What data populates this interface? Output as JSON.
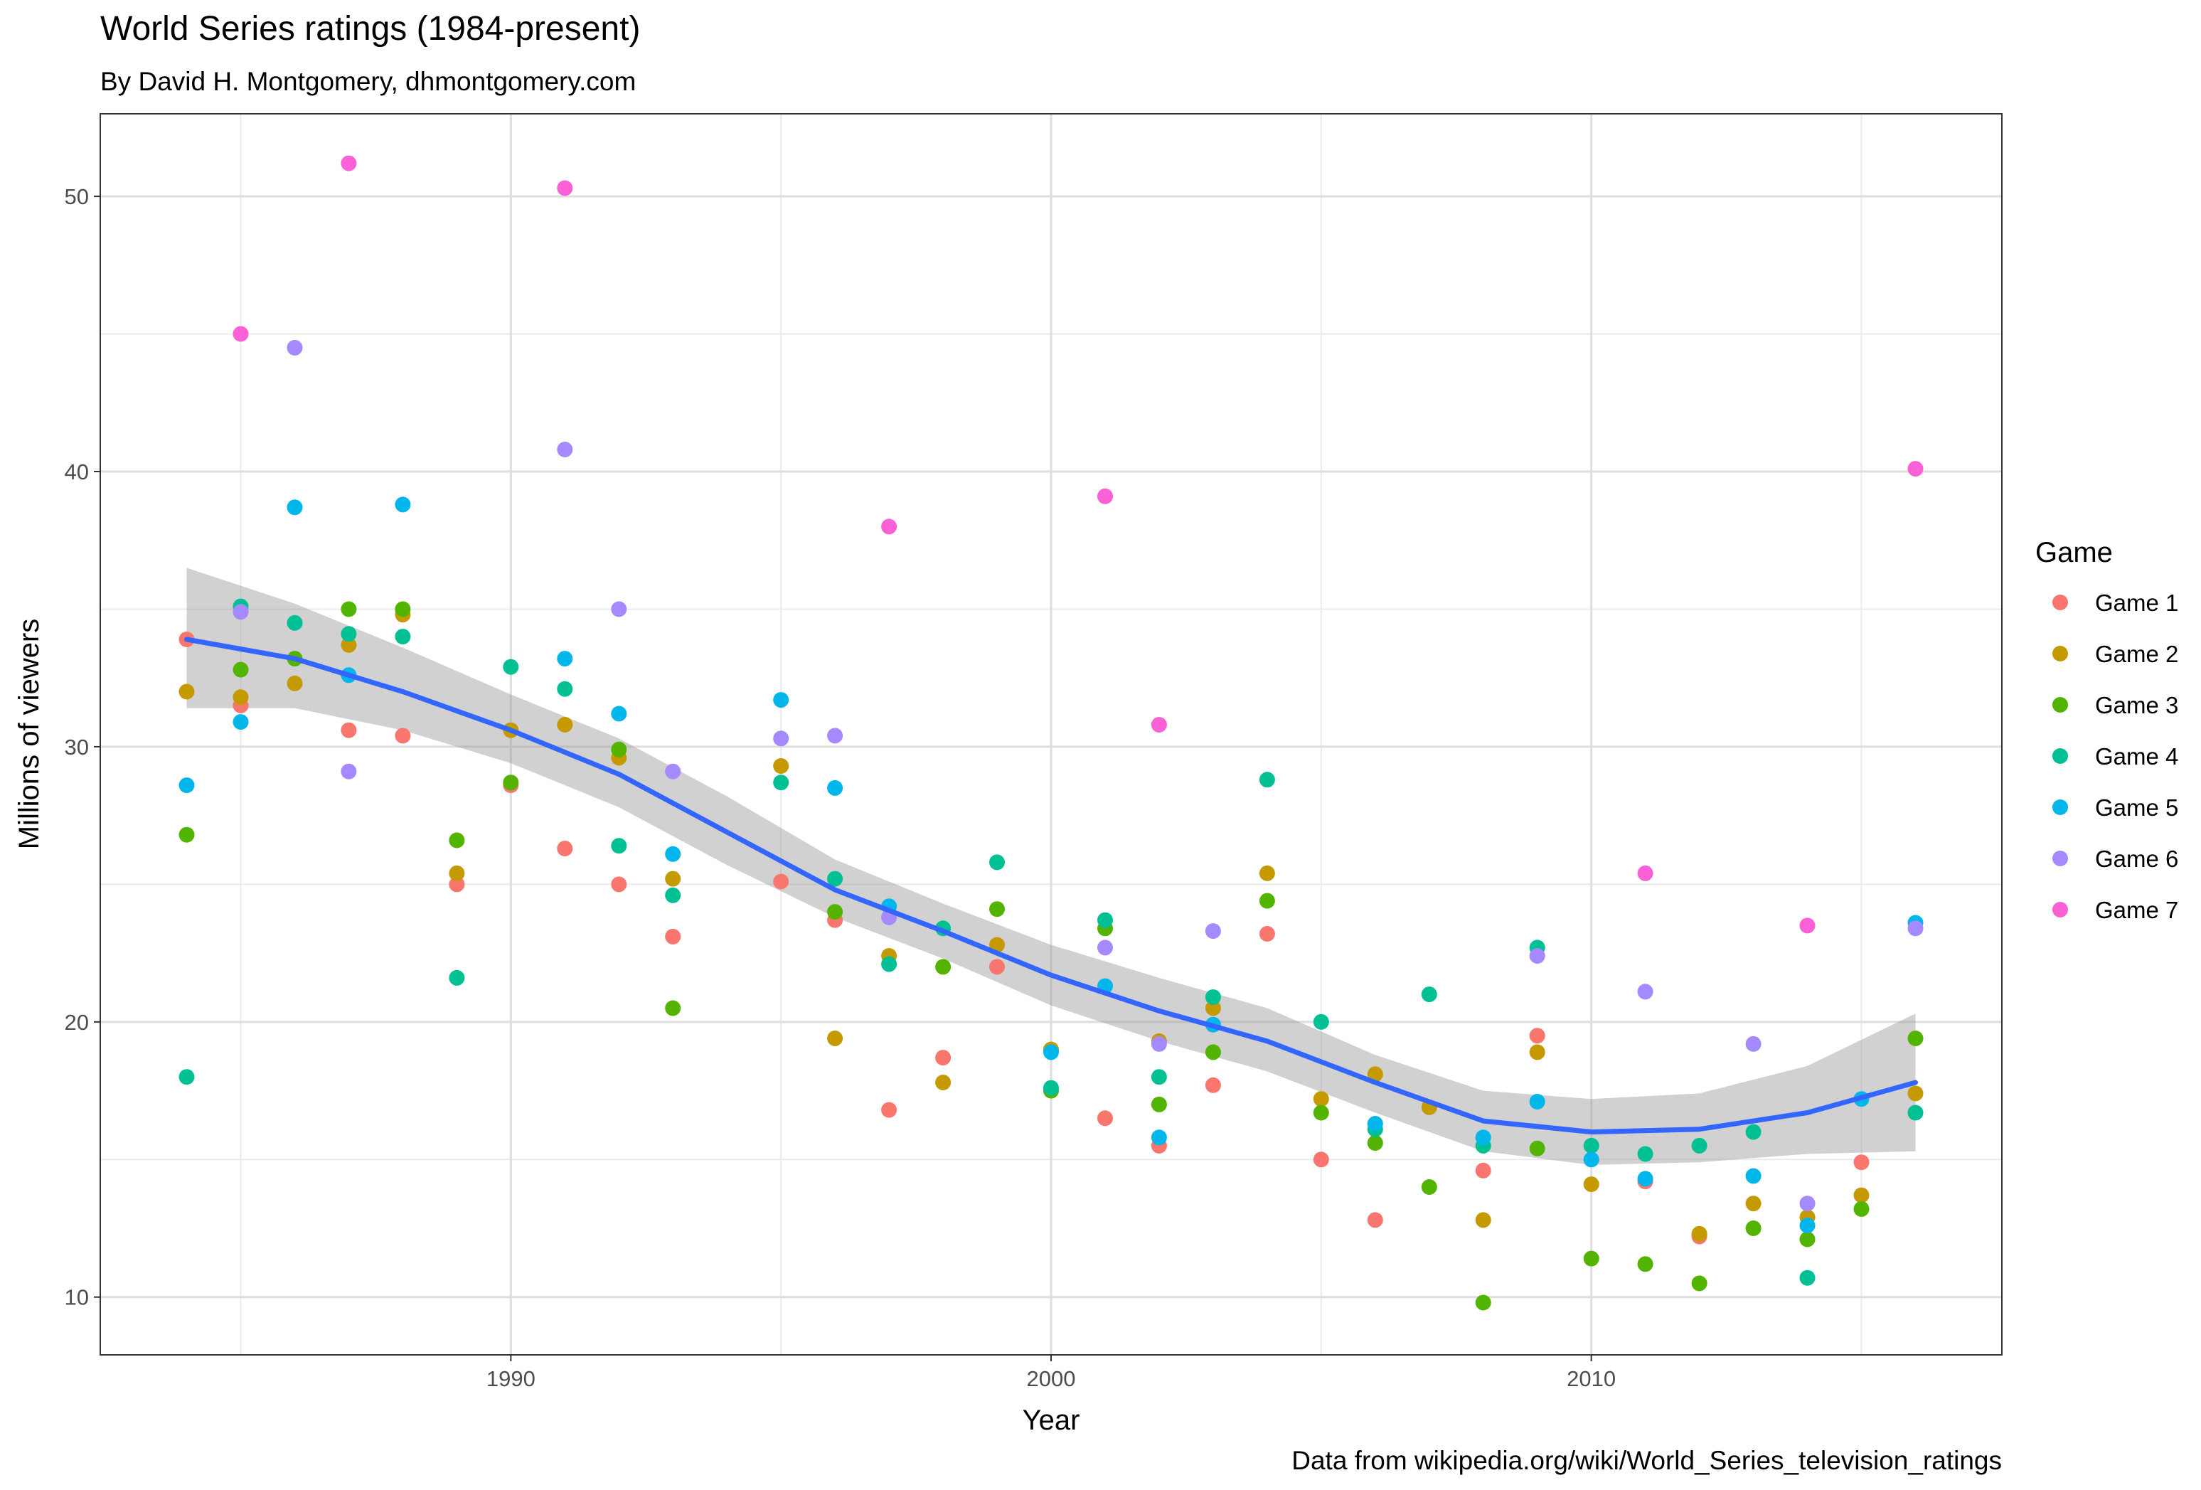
{
  "chart_data": {
    "type": "scatter",
    "title": "World Series ratings (1984-present)",
    "subtitle": "By David H. Montgomery, dhmontgomery.com",
    "xlabel": "Year",
    "ylabel": "Millions of viewers",
    "caption": "Data from wikipedia.org/wiki/World_Series_television_ratings",
    "xlim": [
      1982.4,
      2017.6
    ],
    "ylim": [
      7.9,
      53.0
    ],
    "xticks": [
      1990,
      2000,
      2010
    ],
    "yticks": [
      10,
      20,
      30,
      40,
      50
    ],
    "grid": true,
    "legend": {
      "title": "Game",
      "position": "right"
    },
    "series": [
      {
        "name": "Game 1",
        "color": "#F8766D",
        "points": [
          [
            1984,
            33.9
          ],
          [
            1985,
            31.5
          ],
          [
            1987,
            30.6
          ],
          [
            1988,
            30.4
          ],
          [
            1989,
            25.0
          ],
          [
            1990,
            28.6
          ],
          [
            1991,
            26.3
          ],
          [
            1992,
            25.0
          ],
          [
            1993,
            23.1
          ],
          [
            1995,
            25.1
          ],
          [
            1996,
            23.7
          ],
          [
            1997,
            16.8
          ],
          [
            1998,
            18.7
          ],
          [
            1999,
            22.0
          ],
          [
            2001,
            16.5
          ],
          [
            2002,
            15.5
          ],
          [
            2003,
            17.7
          ],
          [
            2004,
            23.2
          ],
          [
            2005,
            15.0
          ],
          [
            2006,
            12.8
          ],
          [
            2008,
            14.6
          ],
          [
            2009,
            19.5
          ],
          [
            2011,
            14.2
          ],
          [
            2012,
            12.2
          ],
          [
            2015,
            14.9
          ]
        ]
      },
      {
        "name": "Game 2",
        "color": "#C49A00",
        "points": [
          [
            1984,
            32.0
          ],
          [
            1985,
            31.8
          ],
          [
            1986,
            32.3
          ],
          [
            1987,
            33.7
          ],
          [
            1988,
            34.8
          ],
          [
            1989,
            25.4
          ],
          [
            1990,
            30.6
          ],
          [
            1991,
            30.8
          ],
          [
            1992,
            29.6
          ],
          [
            1993,
            25.2
          ],
          [
            1995,
            29.3
          ],
          [
            1996,
            19.4
          ],
          [
            1997,
            22.4
          ],
          [
            1998,
            17.8
          ],
          [
            1999,
            22.8
          ],
          [
            2000,
            19.0
          ],
          [
            2002,
            19.3
          ],
          [
            2003,
            20.5
          ],
          [
            2004,
            25.4
          ],
          [
            2005,
            17.2
          ],
          [
            2006,
            18.1
          ],
          [
            2007,
            16.9
          ],
          [
            2008,
            12.8
          ],
          [
            2009,
            18.9
          ],
          [
            2010,
            14.1
          ],
          [
            2012,
            12.3
          ],
          [
            2013,
            13.4
          ],
          [
            2014,
            12.9
          ],
          [
            2015,
            13.7
          ],
          [
            2016,
            17.4
          ]
        ]
      },
      {
        "name": "Game 3",
        "color": "#53B400",
        "points": [
          [
            1984,
            26.8
          ],
          [
            1985,
            32.8
          ],
          [
            1986,
            33.2
          ],
          [
            1987,
            35.0
          ],
          [
            1988,
            35.0
          ],
          [
            1989,
            26.6
          ],
          [
            1990,
            28.7
          ],
          [
            1992,
            29.9
          ],
          [
            1993,
            20.5
          ],
          [
            1996,
            24.0
          ],
          [
            1998,
            22.0
          ],
          [
            1999,
            24.1
          ],
          [
            2000,
            17.5
          ],
          [
            2001,
            23.4
          ],
          [
            2002,
            17.0
          ],
          [
            2003,
            18.9
          ],
          [
            2004,
            24.4
          ],
          [
            2005,
            16.7
          ],
          [
            2006,
            15.6
          ],
          [
            2007,
            14.0
          ],
          [
            2008,
            9.8
          ],
          [
            2009,
            15.4
          ],
          [
            2010,
            11.4
          ],
          [
            2011,
            11.2
          ],
          [
            2012,
            10.5
          ],
          [
            2013,
            12.5
          ],
          [
            2014,
            12.1
          ],
          [
            2015,
            13.2
          ],
          [
            2016,
            19.4
          ]
        ]
      },
      {
        "name": "Game 4",
        "color": "#00C094",
        "points": [
          [
            1984,
            18.0
          ],
          [
            1985,
            35.1
          ],
          [
            1986,
            34.5
          ],
          [
            1987,
            34.1
          ],
          [
            1988,
            34.0
          ],
          [
            1989,
            21.6
          ],
          [
            1990,
            32.9
          ],
          [
            1991,
            32.1
          ],
          [
            1992,
            26.4
          ],
          [
            1993,
            24.6
          ],
          [
            1995,
            28.7
          ],
          [
            1996,
            25.2
          ],
          [
            1997,
            22.1
          ],
          [
            1998,
            23.4
          ],
          [
            1999,
            25.8
          ],
          [
            2000,
            17.6
          ],
          [
            2001,
            23.7
          ],
          [
            2002,
            18.0
          ],
          [
            2003,
            20.9
          ],
          [
            2004,
            28.8
          ],
          [
            2005,
            20.0
          ],
          [
            2006,
            16.1
          ],
          [
            2007,
            21.0
          ],
          [
            2008,
            15.5
          ],
          [
            2009,
            22.7
          ],
          [
            2010,
            15.5
          ],
          [
            2011,
            15.2
          ],
          [
            2012,
            15.5
          ],
          [
            2013,
            16.0
          ],
          [
            2014,
            10.7
          ],
          [
            2016,
            16.7
          ]
        ]
      },
      {
        "name": "Game 5",
        "color": "#00B6EB",
        "points": [
          [
            1984,
            28.6
          ],
          [
            1985,
            30.9
          ],
          [
            1986,
            38.7
          ],
          [
            1987,
            32.6
          ],
          [
            1988,
            38.8
          ],
          [
            1991,
            33.2
          ],
          [
            1992,
            31.2
          ],
          [
            1993,
            26.1
          ],
          [
            1995,
            31.7
          ],
          [
            1996,
            28.5
          ],
          [
            1997,
            24.2
          ],
          [
            2000,
            18.9
          ],
          [
            2001,
            21.3
          ],
          [
            2002,
            15.8
          ],
          [
            2003,
            19.9
          ],
          [
            2006,
            16.3
          ],
          [
            2008,
            15.8
          ],
          [
            2009,
            17.1
          ],
          [
            2010,
            15.0
          ],
          [
            2011,
            14.3
          ],
          [
            2013,
            14.4
          ],
          [
            2014,
            12.6
          ],
          [
            2015,
            17.2
          ],
          [
            2016,
            23.6
          ]
        ]
      },
      {
        "name": "Game 6",
        "color": "#A58AFF",
        "points": [
          [
            1985,
            34.9
          ],
          [
            1986,
            44.5
          ],
          [
            1987,
            29.1
          ],
          [
            1991,
            40.8
          ],
          [
            1992,
            35.0
          ],
          [
            1993,
            29.1
          ],
          [
            1995,
            30.3
          ],
          [
            1996,
            30.4
          ],
          [
            1997,
            23.8
          ],
          [
            2001,
            22.7
          ],
          [
            2002,
            19.2
          ],
          [
            2003,
            23.3
          ],
          [
            2009,
            22.4
          ],
          [
            2011,
            21.1
          ],
          [
            2013,
            19.2
          ],
          [
            2014,
            13.4
          ],
          [
            2016,
            23.4
          ]
        ]
      },
      {
        "name": "Game 7",
        "color": "#FB61D7",
        "points": [
          [
            1985,
            45.0
          ],
          [
            1987,
            51.2
          ],
          [
            1991,
            50.3
          ],
          [
            1997,
            38.0
          ],
          [
            2001,
            39.1
          ],
          [
            2002,
            30.8
          ],
          [
            2011,
            25.4
          ],
          [
            2014,
            23.5
          ],
          [
            2016,
            40.1
          ]
        ]
      }
    ],
    "smooth": {
      "method": "loess",
      "color": "#3366FF",
      "band_color": "#999999",
      "x": [
        1984,
        1986,
        1988,
        1990,
        1992,
        1994,
        1996,
        1998,
        2000,
        2002,
        2004,
        2006,
        2008,
        2010,
        2012,
        2014,
        2016
      ],
      "y": [
        33.9,
        33.2,
        32.0,
        30.6,
        29.0,
        26.9,
        24.8,
        23.3,
        21.7,
        20.4,
        19.3,
        17.8,
        16.4,
        16.0,
        16.1,
        16.7,
        17.8
      ],
      "lower": [
        31.4,
        31.4,
        30.6,
        29.4,
        27.8,
        25.7,
        23.8,
        22.3,
        20.6,
        19.3,
        18.2,
        16.7,
        15.3,
        14.8,
        14.9,
        15.2,
        15.3
      ],
      "upper": [
        36.5,
        35.2,
        33.6,
        31.9,
        30.3,
        28.2,
        25.9,
        24.3,
        22.8,
        21.6,
        20.5,
        18.8,
        17.5,
        17.2,
        17.4,
        18.4,
        20.3
      ]
    }
  }
}
